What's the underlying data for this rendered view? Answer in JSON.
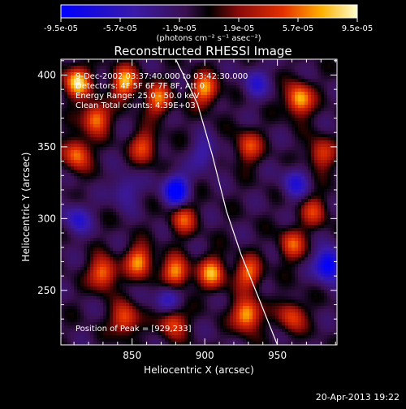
{
  "chart_data": {
    "type": "heatmap",
    "title": "Reconstructed RHESSI Image",
    "xlabel": "Heliocentric X (arcsec)",
    "ylabel": "Heliocentric Y (arcsec)",
    "xlim": [
      801,
      991
    ],
    "ylim": [
      212,
      411
    ],
    "xticks": [
      850,
      900,
      950
    ],
    "yticks": [
      250,
      300,
      350,
      400
    ],
    "colorbar": {
      "min": -9.5e-05,
      "max": 9.5e-05,
      "ticks": [
        "-9.5e-05",
        "-5.7e-05",
        "-1.9e-05",
        "1.9e-05",
        "5.7e-05",
        "9.5e-05"
      ],
      "units_label": "(photons cm⁻² s⁻¹ asec⁻²)"
    },
    "annotations": [
      "9-Dec-2002 03:37:40.000 to 03:42:30.000",
      "Detectors: 4F 5F 6F 7F 8F, Att 0",
      "Energy Range: 25.0 - 50.0 keV",
      "Clean     Total counts: 4.39E+03"
    ],
    "peak_label": "Position of Peak = [929,233]",
    "peak_position": [
      929,
      233
    ],
    "limb_curve": [
      [
        880,
        411
      ],
      [
        895,
        380
      ],
      [
        905,
        345
      ],
      [
        915,
        305
      ],
      [
        925,
        275
      ],
      [
        937,
        245
      ],
      [
        950,
        212
      ]
    ],
    "hotspots": [
      {
        "x": 812,
        "y": 395,
        "value": 9.5e-05
      },
      {
        "x": 825,
        "y": 370,
        "value": 8e-05
      },
      {
        "x": 812,
        "y": 345,
        "value": 7.5e-05
      },
      {
        "x": 845,
        "y": 395,
        "value": 8.5e-05
      },
      {
        "x": 868,
        "y": 383,
        "value": 7e-05
      },
      {
        "x": 858,
        "y": 350,
        "value": 6e-05
      },
      {
        "x": 900,
        "y": 390,
        "value": 8e-05
      },
      {
        "x": 930,
        "y": 350,
        "value": 6e-05
      },
      {
        "x": 965,
        "y": 383,
        "value": 9.2e-05
      },
      {
        "x": 980,
        "y": 345,
        "value": 6e-05
      },
      {
        "x": 975,
        "y": 305,
        "value": 5e-05
      },
      {
        "x": 885,
        "y": 300,
        "value": 6e-05
      },
      {
        "x": 830,
        "y": 262,
        "value": 8e-05
      },
      {
        "x": 855,
        "y": 270,
        "value": 8e-05
      },
      {
        "x": 880,
        "y": 262,
        "value": 8.5e-05
      },
      {
        "x": 905,
        "y": 262,
        "value": 8e-05
      },
      {
        "x": 930,
        "y": 262,
        "value": 7e-05
      },
      {
        "x": 960,
        "y": 282,
        "value": 6e-05
      },
      {
        "x": 845,
        "y": 230,
        "value": 7e-05
      },
      {
        "x": 878,
        "y": 228,
        "value": 6.5e-05
      },
      {
        "x": 929,
        "y": 233,
        "value": 9.5e-05
      },
      {
        "x": 960,
        "y": 232,
        "value": 6e-05
      }
    ],
    "coldspots": [
      {
        "x": 812,
        "y": 300,
        "value": -5e-05
      },
      {
        "x": 845,
        "y": 320,
        "value": -4e-05
      },
      {
        "x": 880,
        "y": 320,
        "value": -9e-05
      },
      {
        "x": 875,
        "y": 245,
        "value": -5.5e-05
      },
      {
        "x": 935,
        "y": 395,
        "value": -4.5e-05
      },
      {
        "x": 962,
        "y": 325,
        "value": -5e-05
      },
      {
        "x": 985,
        "y": 268,
        "value": -9.5e-05
      },
      {
        "x": 900,
        "y": 345,
        "value": -4e-05
      }
    ]
  },
  "footer_date": "20-Apr-2013 19:22"
}
